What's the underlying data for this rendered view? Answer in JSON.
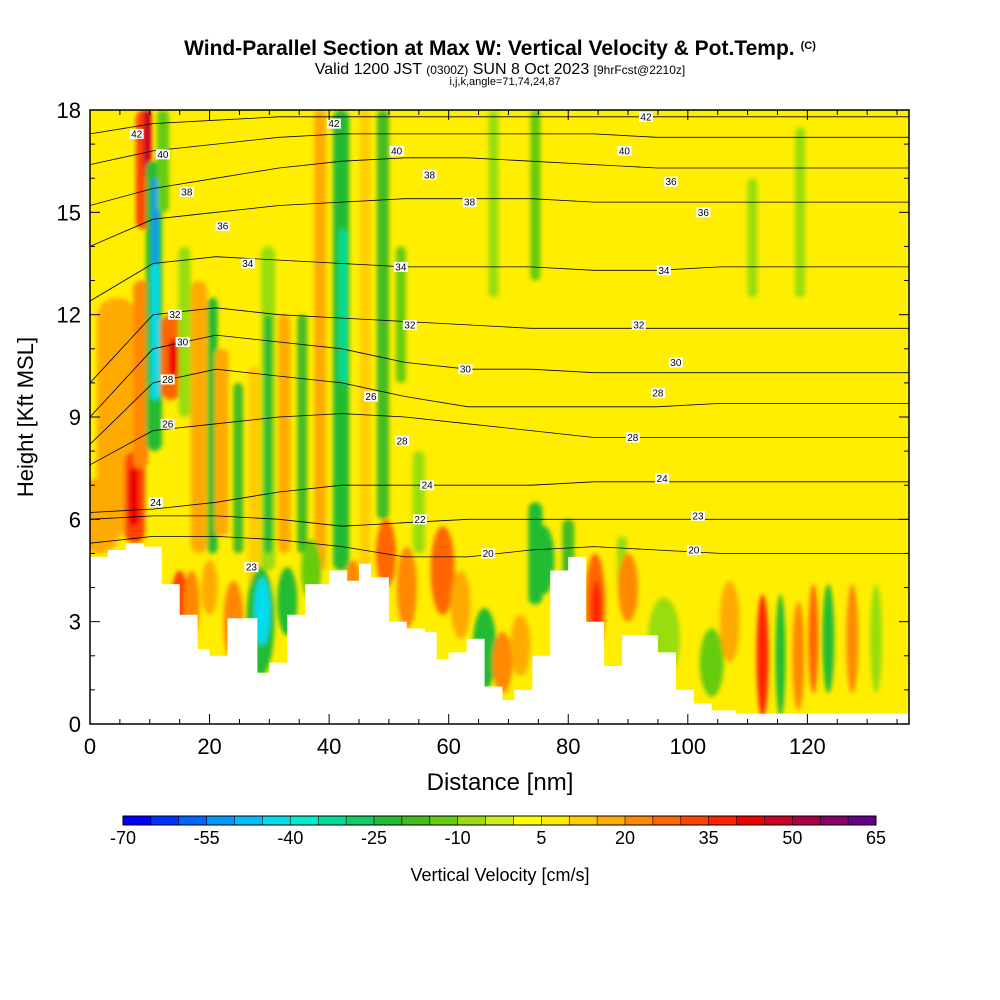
{
  "header": {
    "title": "Wind-Parallel Section at Max W: Vertical Velocity & Pot.Temp.",
    "title_unit": "(C)",
    "valid_a": "Valid 1200 JST",
    "valid_b": "(0300Z)",
    "valid_c": "SUN 8 Oct 2023",
    "valid_d": "[9hrFcst@2210z]",
    "params": "i,j,k,angle=71,74,24,87"
  },
  "chart_data": {
    "type": "heatmap",
    "xlabel": "Distance [nm]",
    "ylabel": "Height [Kft MSL]",
    "xlim": [
      0,
      137
    ],
    "ylim": [
      0,
      18
    ],
    "x_ticks": [
      0,
      20,
      40,
      60,
      80,
      100,
      120
    ],
    "y_ticks": [
      0,
      3,
      6,
      9,
      12,
      15,
      18
    ],
    "colorbar": {
      "label": "Vertical Velocity [cm/s]",
      "levels": [
        -70,
        -65,
        -60,
        -55,
        -50,
        -45,
        -40,
        -35,
        -30,
        -25,
        -20,
        -15,
        -10,
        -5,
        0,
        5,
        10,
        15,
        20,
        25,
        30,
        35,
        40,
        45,
        50,
        55,
        60,
        65
      ],
      "tick_labels": [
        "-70",
        "-55",
        "-40",
        "-25",
        "-10",
        "5",
        "20",
        "35",
        "50",
        "65"
      ],
      "colors": [
        "#0000ff",
        "#0033ff",
        "#0066ff",
        "#0099ff",
        "#00bbff",
        "#00ddee",
        "#00eecc",
        "#00dd99",
        "#11cc66",
        "#22bb33",
        "#44bb22",
        "#66cc11",
        "#99dd11",
        "#ccee22",
        "#ffff00",
        "#ffee00",
        "#ffcc00",
        "#ffaa00",
        "#ff8800",
        "#ff6600",
        "#ff4400",
        "#ff2200",
        "#ee0000",
        "#cc0022",
        "#aa0044",
        "#880066",
        "#660088"
      ]
    },
    "theta_contours": [
      {
        "label": "20",
        "z": [
          5.3,
          5.5,
          5.5,
          5.4,
          5.2,
          4.9,
          4.9,
          5.1,
          5.2,
          5.1,
          5.0,
          5.0,
          5.0,
          5.0
        ]
      },
      {
        "label": "22",
        "z": [
          6.0,
          6.1,
          6.1,
          6.0,
          5.8,
          5.9,
          6.0,
          6.0,
          6.0,
          6.0,
          6.0,
          6.0,
          6.0,
          6.0
        ]
      },
      {
        "label": "24",
        "z": [
          6.2,
          6.3,
          6.5,
          6.8,
          7.0,
          7.0,
          7.0,
          7.0,
          7.1,
          7.1,
          7.1,
          7.1,
          7.1,
          7.1
        ]
      },
      {
        "label": "26",
        "z": [
          7.6,
          8.6,
          8.8,
          9.0,
          9.1,
          9.0,
          8.8,
          8.6,
          8.4,
          8.4,
          8.4,
          8.4,
          8.4,
          8.4
        ]
      },
      {
        "label": "28",
        "z": [
          8.2,
          10.0,
          10.4,
          10.2,
          10.0,
          9.6,
          9.3,
          9.3,
          9.3,
          9.3,
          9.4,
          9.4,
          9.4,
          9.4
        ]
      },
      {
        "label": "30",
        "z": [
          9.0,
          11.0,
          11.4,
          11.2,
          11.0,
          10.6,
          10.4,
          10.4,
          10.3,
          10.3,
          10.3,
          10.3,
          10.3,
          10.3
        ]
      },
      {
        "label": "32",
        "z": [
          10.0,
          12.0,
          12.2,
          12.0,
          11.9,
          11.8,
          11.7,
          11.6,
          11.6,
          11.6,
          11.6,
          11.6,
          11.6,
          11.6
        ]
      },
      {
        "label": "34",
        "z": [
          12.4,
          13.5,
          13.7,
          13.6,
          13.5,
          13.4,
          13.4,
          13.4,
          13.3,
          13.3,
          13.4,
          13.4,
          13.4,
          13.4
        ]
      },
      {
        "label": "36",
        "z": [
          14.0,
          14.8,
          15.0,
          15.2,
          15.3,
          15.4,
          15.4,
          15.4,
          15.3,
          15.3,
          15.3,
          15.3,
          15.3,
          15.3
        ]
      },
      {
        "label": "38",
        "z": [
          15.2,
          15.7,
          16.0,
          16.3,
          16.5,
          16.6,
          16.6,
          16.5,
          16.4,
          16.3,
          16.3,
          16.3,
          16.3,
          16.3
        ]
      },
      {
        "label": "40",
        "z": [
          16.4,
          16.8,
          17.0,
          17.2,
          17.3,
          17.3,
          17.3,
          17.3,
          17.3,
          17.2,
          17.2,
          17.2,
          17.2,
          17.2
        ]
      },
      {
        "label": "42",
        "z": [
          17.3,
          17.6,
          17.7,
          17.8,
          17.8,
          17.8,
          17.8,
          17.8,
          17.8,
          17.8,
          17.8,
          17.8,
          17.8,
          17.8
        ]
      }
    ],
    "terrain": {
      "x": [
        0,
        3,
        6,
        9,
        12,
        15,
        18,
        20,
        23,
        26,
        28,
        30,
        33,
        36,
        40,
        43,
        45,
        47,
        50,
        53,
        56,
        58,
        60,
        63,
        66,
        69,
        71,
        74,
        77,
        80,
        83,
        86,
        89,
        92,
        95,
        98,
        101,
        104,
        108,
        112,
        116,
        120,
        125,
        130,
        137
      ],
      "z": [
        4.9,
        5.1,
        5.3,
        5.2,
        4.1,
        3.2,
        2.2,
        2.0,
        3.1,
        3.1,
        1.5,
        1.8,
        3.2,
        4.1,
        4.5,
        4.2,
        4.7,
        4.3,
        3.0,
        2.8,
        2.7,
        1.9,
        2.1,
        2.5,
        1.1,
        0.7,
        1.0,
        2.0,
        4.5,
        4.9,
        3.0,
        1.7,
        2.6,
        2.6,
        2.1,
        1.0,
        0.6,
        0.4,
        0.3,
        0.3,
        0.3,
        0.3,
        0.3,
        0.3,
        0.3
      ]
    },
    "contour_labels": [
      {
        "text": "42",
        "x": 7.8,
        "z": 17.3
      },
      {
        "text": "40",
        "x": 12.2,
        "z": 16.7
      },
      {
        "text": "38",
        "x": 16.2,
        "z": 15.6
      },
      {
        "text": "36",
        "x": 22.2,
        "z": 14.6
      },
      {
        "text": "34",
        "x": 26.4,
        "z": 13.5
      },
      {
        "text": "32",
        "x": 14.2,
        "z": 12.0
      },
      {
        "text": "30",
        "x": 15.5,
        "z": 11.2
      },
      {
        "text": "28",
        "x": 13.0,
        "z": 10.1
      },
      {
        "text": "26",
        "x": 13.0,
        "z": 8.8
      },
      {
        "text": "24",
        "x": 11.0,
        "z": 6.5
      },
      {
        "text": "42",
        "x": 40.8,
        "z": 17.6
      },
      {
        "text": "40",
        "x": 51.3,
        "z": 16.8
      },
      {
        "text": "38",
        "x": 56.8,
        "z": 16.1
      },
      {
        "text": "38",
        "x": 63.5,
        "z": 15.3
      },
      {
        "text": "34",
        "x": 52.0,
        "z": 13.4
      },
      {
        "text": "32",
        "x": 53.5,
        "z": 11.7
      },
      {
        "text": "30",
        "x": 62.8,
        "z": 10.4
      },
      {
        "text": "26",
        "x": 47.0,
        "z": 9.6
      },
      {
        "text": "28",
        "x": 52.2,
        "z": 8.3
      },
      {
        "text": "24",
        "x": 56.4,
        "z": 7.0
      },
      {
        "text": "22",
        "x": 55.2,
        "z": 6.0
      },
      {
        "text": "20",
        "x": 66.6,
        "z": 5.0
      },
      {
        "text": "42",
        "x": 93.0,
        "z": 17.8
      },
      {
        "text": "40",
        "x": 89.4,
        "z": 16.8
      },
      {
        "text": "36",
        "x": 97.2,
        "z": 15.9
      },
      {
        "text": "36",
        "x": 102.6,
        "z": 15.0
      },
      {
        "text": "34",
        "x": 96.0,
        "z": 13.3
      },
      {
        "text": "32",
        "x": 91.8,
        "z": 11.7
      },
      {
        "text": "30",
        "x": 98.0,
        "z": 10.6
      },
      {
        "text": "28",
        "x": 95.0,
        "z": 9.7
      },
      {
        "text": "28",
        "x": 90.8,
        "z": 8.4
      },
      {
        "text": "24",
        "x": 95.7,
        "z": 7.2
      },
      {
        "text": "23",
        "x": 101.7,
        "z": 6.1
      },
      {
        "text": "20",
        "x": 101.0,
        "z": 5.1
      },
      {
        "text": "23",
        "x": 27.0,
        "z": 4.6
      }
    ],
    "bands": [
      {
        "x": 1.5,
        "z0": 5.0,
        "z1": 7.2,
        "w": 40,
        "c": "#ffaa00"
      },
      {
        "x": 4.5,
        "z0": 5.5,
        "z1": 12.5,
        "w": 40,
        "c": "#ffaa00"
      },
      {
        "x": 7.5,
        "z0": 5.3,
        "z1": 8.0,
        "w": 20,
        "c": "#ff4400"
      },
      {
        "x": 7.3,
        "z0": 5.8,
        "z1": 7.5,
        "w": 10,
        "c": "#ee0000"
      },
      {
        "x": 8.5,
        "z0": 7.5,
        "z1": 13.0,
        "w": 15,
        "c": "#ff8800"
      },
      {
        "x": 9.0,
        "z0": 14.5,
        "z1": 18.0,
        "w": 16,
        "c": "#ff4400"
      },
      {
        "x": 9.6,
        "z0": 16.0,
        "z1": 18.0,
        "w": 8,
        "c": "#cc0022"
      },
      {
        "x": 10.7,
        "z0": 8.0,
        "z1": 16.5,
        "w": 16,
        "c": "#22bb33"
      },
      {
        "x": 10.9,
        "z0": 9.5,
        "z1": 13.5,
        "w": 8,
        "c": "#00ddee"
      },
      {
        "x": 10.9,
        "z0": 13.5,
        "z1": 16.0,
        "w": 6,
        "c": "#0099ff"
      },
      {
        "x": 12.2,
        "z0": 15.0,
        "z1": 18.0,
        "w": 12,
        "c": "#66cc11"
      },
      {
        "x": 13.5,
        "z0": 9.5,
        "z1": 12.0,
        "w": 20,
        "c": "#ff6600"
      },
      {
        "x": 14.0,
        "z0": 10.2,
        "z1": 11.3,
        "w": 10,
        "c": "#ee0000"
      },
      {
        "x": 15.8,
        "z0": 9.0,
        "z1": 14.0,
        "w": 12,
        "c": "#99dd11"
      },
      {
        "x": 18.2,
        "z0": 5.0,
        "z1": 13.0,
        "w": 16,
        "c": "#ffaa00"
      },
      {
        "x": 20.5,
        "z0": 5.0,
        "z1": 12.5,
        "w": 10,
        "c": "#22bb33"
      },
      {
        "x": 22.0,
        "z0": 5.5,
        "z1": 11.0,
        "w": 14,
        "c": "#ffaa00"
      },
      {
        "x": 24.8,
        "z0": 5.0,
        "z1": 10.0,
        "w": 10,
        "c": "#44bb22"
      },
      {
        "x": 27.5,
        "z0": 4.0,
        "z1": 10.5,
        "w": 12,
        "c": "#ffcc00"
      },
      {
        "x": 29.8,
        "z0": 4.5,
        "z1": 14.0,
        "w": 14,
        "c": "#99dd11"
      },
      {
        "x": 29.8,
        "z0": 5.0,
        "z1": 12.0,
        "w": 8,
        "c": "#22bb33"
      },
      {
        "x": 32.5,
        "z0": 5.0,
        "z1": 12.0,
        "w": 12,
        "c": "#ffaa00"
      },
      {
        "x": 35.5,
        "z0": 5.0,
        "z1": 12.0,
        "w": 10,
        "c": "#44bb22"
      },
      {
        "x": 38.5,
        "z0": 4.5,
        "z1": 18.0,
        "w": 12,
        "c": "#ffaa00"
      },
      {
        "x": 42.0,
        "z0": 4.5,
        "z1": 18.0,
        "w": 16,
        "c": "#22bb33"
      },
      {
        "x": 42.3,
        "z0": 10.0,
        "z1": 14.5,
        "w": 8,
        "c": "#00dd99"
      },
      {
        "x": 46.0,
        "z0": 4.5,
        "z1": 18.0,
        "w": 10,
        "c": "#ffcc00"
      },
      {
        "x": 49.0,
        "z0": 6.0,
        "z1": 18.0,
        "w": 12,
        "c": "#44bb22"
      },
      {
        "x": 52.0,
        "z0": 10.0,
        "z1": 14.0,
        "w": 10,
        "c": "#66cc11"
      },
      {
        "x": 55.0,
        "z0": 5.0,
        "z1": 8.0,
        "w": 12,
        "c": "#99dd11"
      },
      {
        "x": 67.5,
        "z0": 12.5,
        "z1": 18.0,
        "w": 10,
        "c": "#99dd11"
      },
      {
        "x": 74.5,
        "z0": 3.5,
        "z1": 6.5,
        "w": 14,
        "c": "#22bb33"
      },
      {
        "x": 74.5,
        "z0": 13.0,
        "z1": 18.0,
        "w": 10,
        "c": "#66cc11"
      },
      {
        "x": 80.0,
        "z0": 3.5,
        "z1": 6.0,
        "w": 12,
        "c": "#44bb22"
      },
      {
        "x": 89.0,
        "z0": 4.0,
        "z1": 5.5,
        "w": 10,
        "c": "#99dd11"
      },
      {
        "x": 110.8,
        "z0": 12.5,
        "z1": 16.0,
        "w": 10,
        "c": "#99dd11"
      },
      {
        "x": 118.8,
        "z0": 12.5,
        "z1": 17.5,
        "w": 10,
        "c": "#99dd11"
      }
    ],
    "blobs": [
      {
        "x": 15.0,
        "z": 3.2,
        "rx": 10,
        "rz": 1.3,
        "c": "#ff4400"
      },
      {
        "x": 17.0,
        "z": 3.5,
        "rx": 8,
        "rz": 1.0,
        "c": "#ff8800"
      },
      {
        "x": 20.0,
        "z": 4.0,
        "rx": 8,
        "rz": 0.8,
        "c": "#ffaa00"
      },
      {
        "x": 24.0,
        "z": 3.0,
        "rx": 10,
        "rz": 1.2,
        "c": "#ff8800"
      },
      {
        "x": 28.5,
        "z": 3.0,
        "rx": 14,
        "rz": 1.6,
        "c": "#22bb33"
      },
      {
        "x": 28.8,
        "z": 3.3,
        "rx": 8,
        "rz": 1.0,
        "c": "#00ddee"
      },
      {
        "x": 33.0,
        "z": 3.6,
        "rx": 10,
        "rz": 1.0,
        "c": "#22bb33"
      },
      {
        "x": 37.0,
        "z": 4.5,
        "rx": 10,
        "rz": 0.9,
        "c": "#66cc11"
      },
      {
        "x": 44.0,
        "z": 4.0,
        "rx": 8,
        "rz": 0.8,
        "c": "#ff8800"
      },
      {
        "x": 49.5,
        "z": 5.0,
        "rx": 10,
        "rz": 1.0,
        "c": "#ff6600"
      },
      {
        "x": 53.0,
        "z": 4.0,
        "rx": 10,
        "rz": 1.2,
        "c": "#ff8800"
      },
      {
        "x": 59.0,
        "z": 4.5,
        "rx": 12,
        "rz": 1.3,
        "c": "#ff6600"
      },
      {
        "x": 62.0,
        "z": 3.5,
        "rx": 10,
        "rz": 1.0,
        "c": "#ffaa00"
      },
      {
        "x": 66.0,
        "z": 2.2,
        "rx": 12,
        "rz": 1.2,
        "c": "#22bb33"
      },
      {
        "x": 69.0,
        "z": 1.8,
        "rx": 10,
        "rz": 0.9,
        "c": "#ff8800"
      },
      {
        "x": 72.0,
        "z": 2.3,
        "rx": 10,
        "rz": 0.9,
        "c": "#ffaa00"
      },
      {
        "x": 76.0,
        "z": 4.8,
        "rx": 10,
        "rz": 1.0,
        "c": "#22bb33"
      },
      {
        "x": 84.5,
        "z": 3.5,
        "rx": 10,
        "rz": 1.5,
        "c": "#ff6600"
      },
      {
        "x": 84.7,
        "z": 3.4,
        "rx": 5,
        "rz": 0.8,
        "c": "#ff2200"
      },
      {
        "x": 90.0,
        "z": 4.0,
        "rx": 10,
        "rz": 1.0,
        "c": "#ff8800"
      },
      {
        "x": 96.0,
        "z": 2.5,
        "rx": 16,
        "rz": 1.2,
        "c": "#99dd11"
      },
      {
        "x": 104.0,
        "z": 1.8,
        "rx": 12,
        "rz": 1.0,
        "c": "#66cc11"
      },
      {
        "x": 107.0,
        "z": 3.0,
        "rx": 10,
        "rz": 1.2,
        "c": "#ffaa00"
      },
      {
        "x": 112.5,
        "z": 2.0,
        "rx": 6,
        "rz": 1.8,
        "c": "#ff2200"
      },
      {
        "x": 115.5,
        "z": 2.0,
        "rx": 5,
        "rz": 1.8,
        "c": "#22bb33"
      },
      {
        "x": 118.5,
        "z": 2.0,
        "rx": 6,
        "rz": 1.6,
        "c": "#ff8800"
      },
      {
        "x": 121.0,
        "z": 2.5,
        "rx": 5,
        "rz": 1.6,
        "c": "#ff6600"
      },
      {
        "x": 123.5,
        "z": 2.5,
        "rx": 6,
        "rz": 1.6,
        "c": "#22bb33"
      },
      {
        "x": 127.5,
        "z": 2.5,
        "rx": 6,
        "rz": 1.6,
        "c": "#ff8800"
      },
      {
        "x": 131.5,
        "z": 2.5,
        "rx": 6,
        "rz": 1.6,
        "c": "#99dd11"
      }
    ]
  }
}
